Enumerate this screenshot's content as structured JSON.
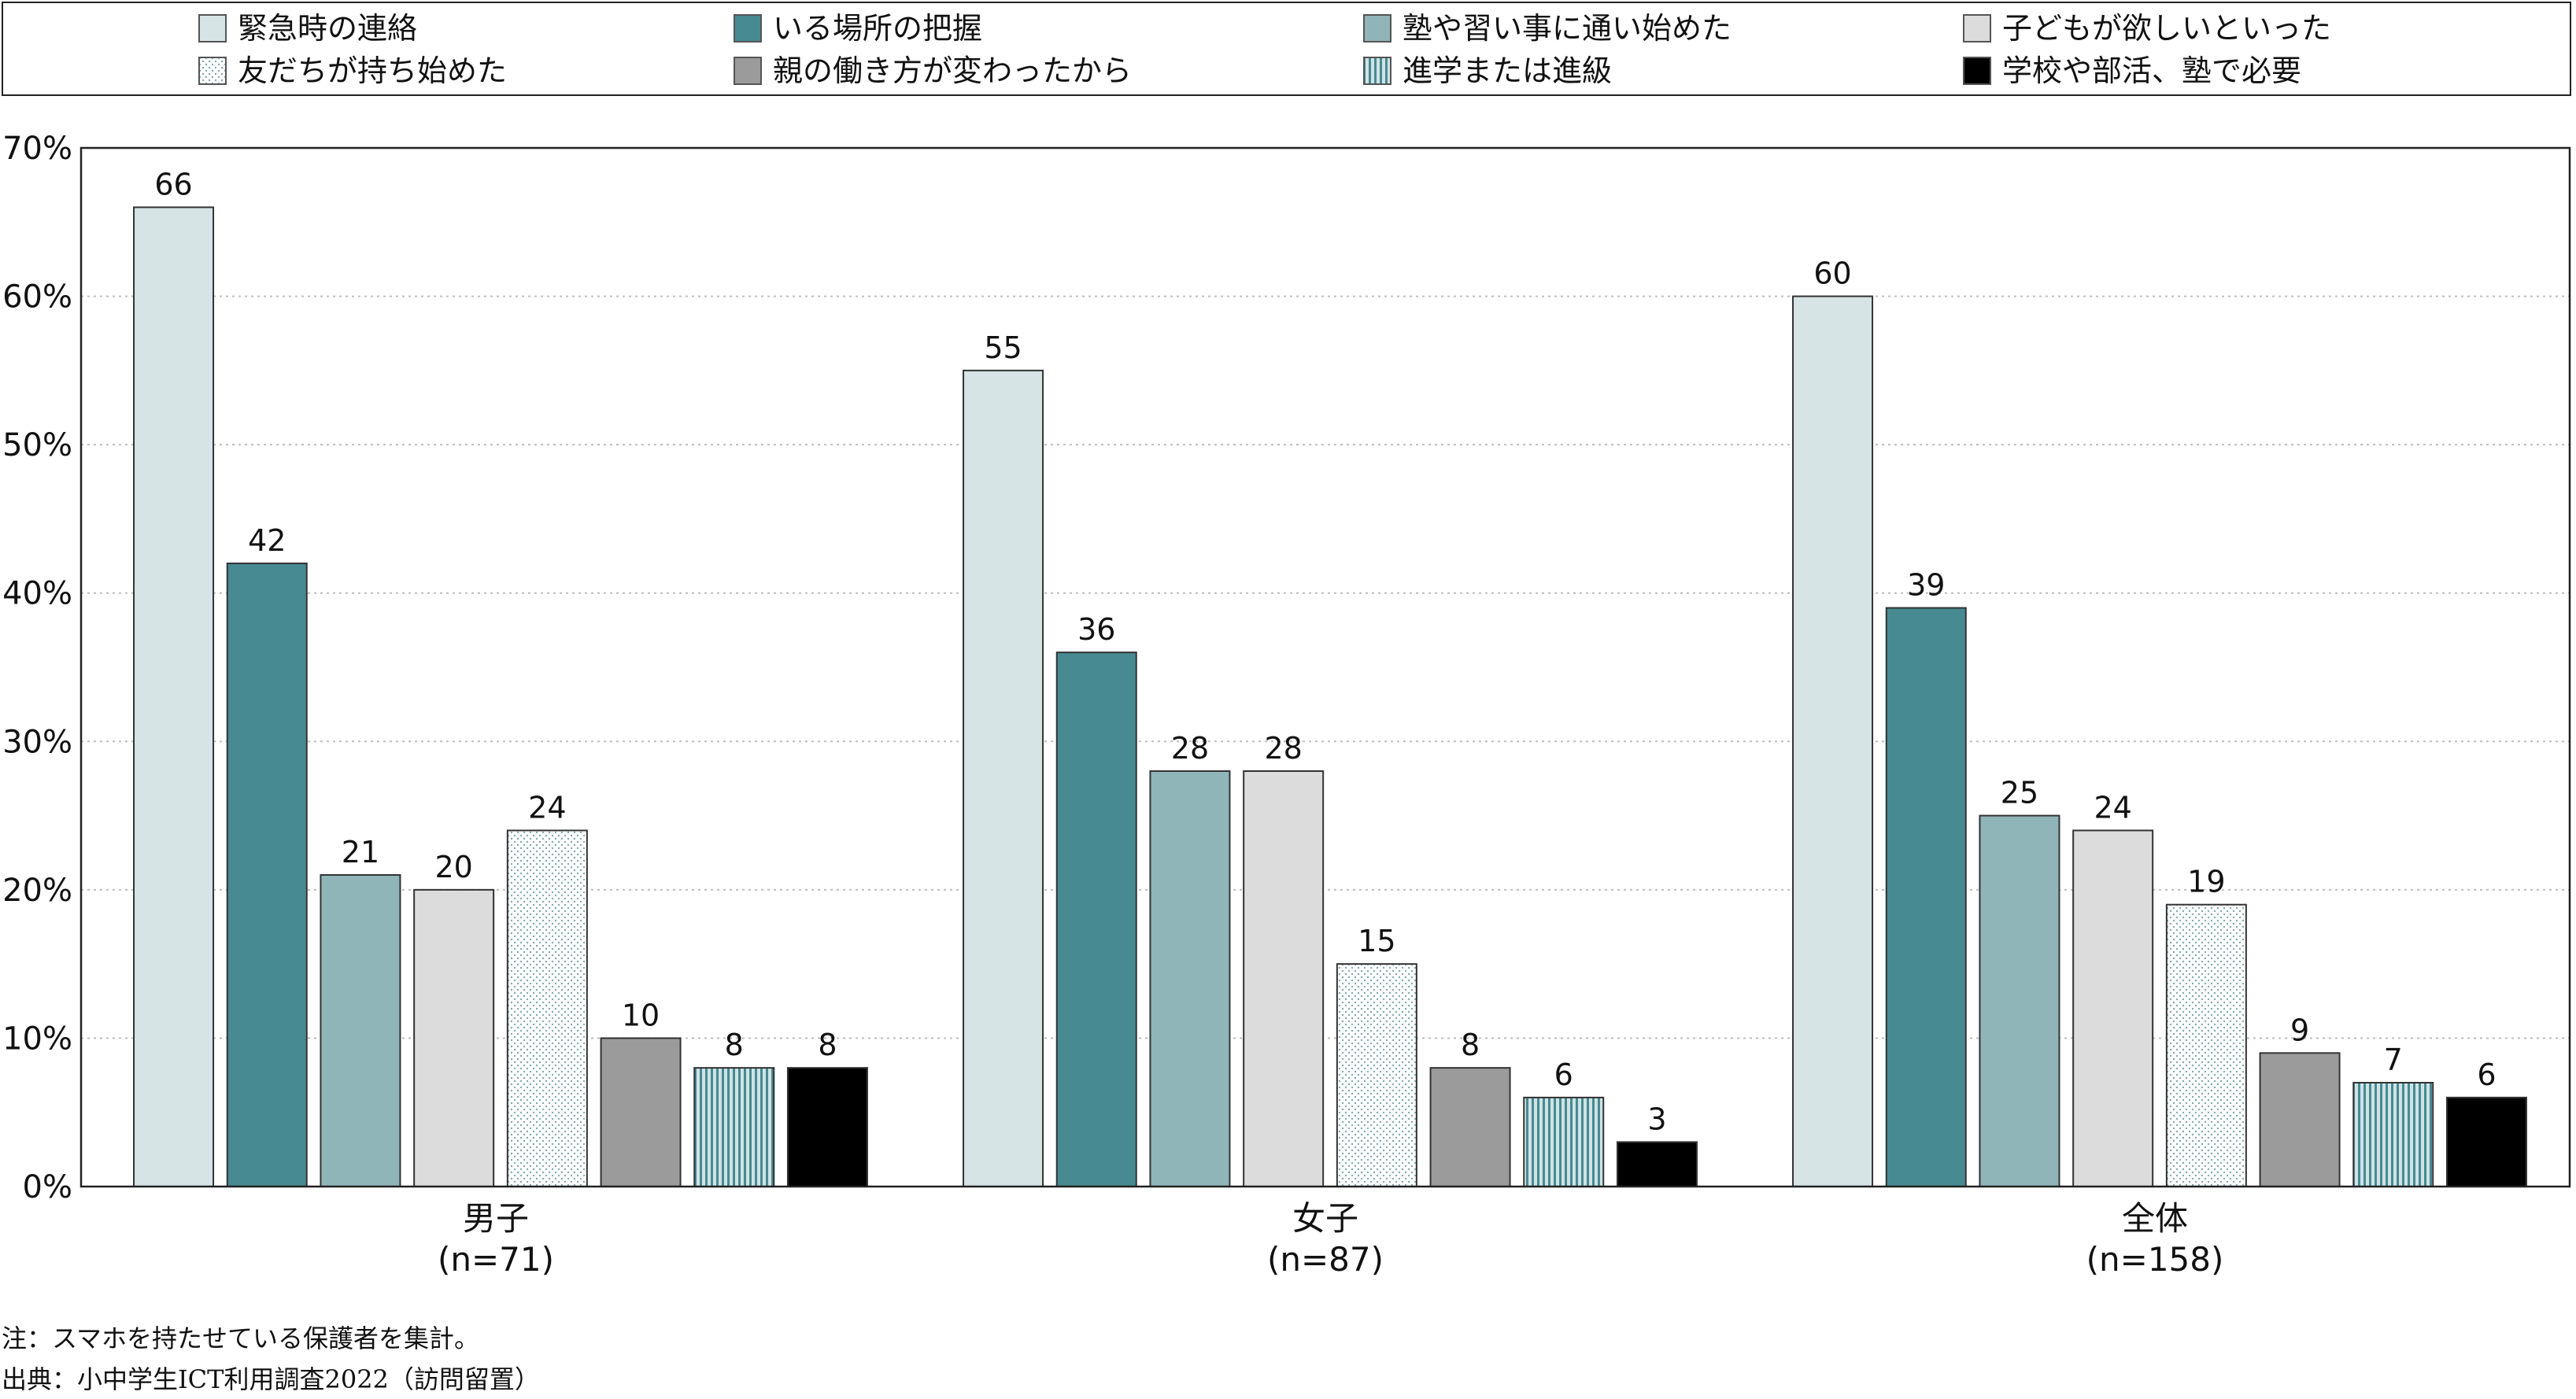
{
  "legend": [
    {
      "label": "緊急時の連絡"
    },
    {
      "label": "いる場所の把握"
    },
    {
      "label": "塾や習い事に通い始めた"
    },
    {
      "label": "子どもが欲しいといった"
    },
    {
      "label": "友だちが持ち始めた"
    },
    {
      "label": "親の働き方が変わったから"
    },
    {
      "label": "進学または進級"
    },
    {
      "label": "学校や部活、塾で必要"
    }
  ],
  "notes": {
    "note": "注：スマホを持たせている保護者を集計。",
    "source": "出典：小中学生ICT利用調査2022（訪問留置）"
  },
  "chart_data": {
    "type": "bar",
    "categories": [
      {
        "name": "男子",
        "n": "(n=71)"
      },
      {
        "name": "女子",
        "n": "(n=87)"
      },
      {
        "name": "全体",
        "n": "(n=158)"
      }
    ],
    "series": [
      {
        "name": "緊急時の連絡",
        "values": [
          66,
          55,
          60
        ],
        "color": "#d6e4e6",
        "pattern": "solid"
      },
      {
        "name": "いる場所の把握",
        "values": [
          42,
          36,
          39
        ],
        "color": "#478a92",
        "pattern": "solid"
      },
      {
        "name": "塾や習い事に通い始めた",
        "values": [
          21,
          28,
          25
        ],
        "color": "#90b5b9",
        "pattern": "solid"
      },
      {
        "name": "子どもが欲しいといった",
        "values": [
          20,
          28,
          24
        ],
        "color": "#dcdcdc",
        "pattern": "solid"
      },
      {
        "name": "友だちが持ち始めた",
        "values": [
          24,
          15,
          19
        ],
        "color": "#ffffff",
        "pattern": "dots"
      },
      {
        "name": "親の働き方が変わったから",
        "values": [
          10,
          8,
          9
        ],
        "color": "#9b9b9b",
        "pattern": "solid"
      },
      {
        "name": "進学または進級",
        "values": [
          8,
          6,
          7
        ],
        "color": "#478a92",
        "pattern": "stripes"
      },
      {
        "name": "学校や部活、塾で必要",
        "values": [
          8,
          3,
          6
        ],
        "color": "#000000",
        "pattern": "solid"
      }
    ],
    "ylim": [
      0,
      70
    ],
    "yticks": [
      "0%",
      "10%",
      "20%",
      "30%",
      "40%",
      "50%",
      "60%",
      "70%"
    ],
    "grid": true,
    "legend_position": "top"
  }
}
